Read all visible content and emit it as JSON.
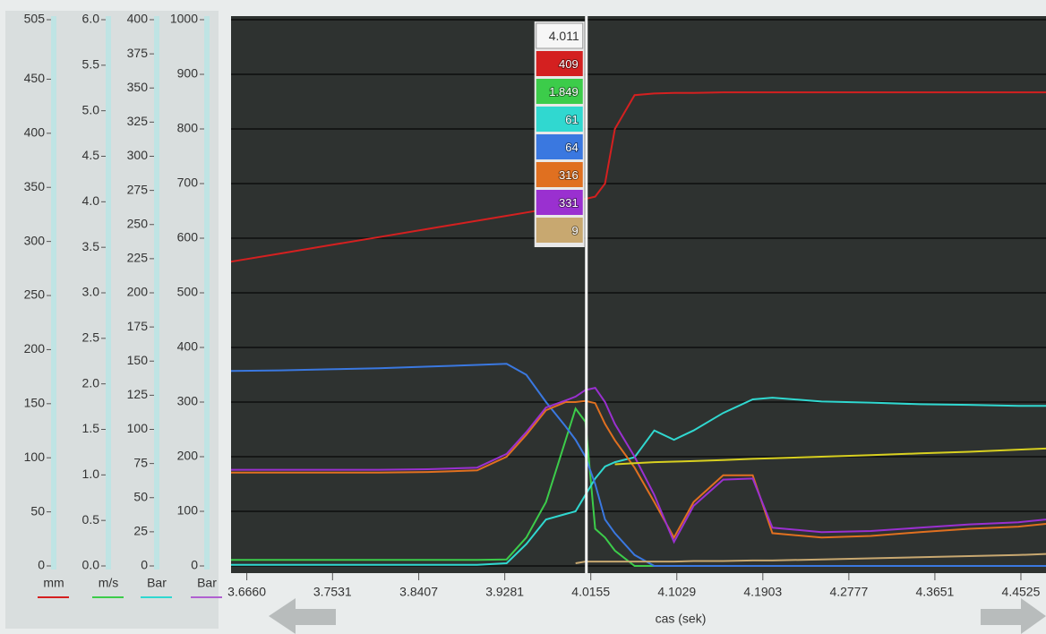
{
  "chart_data": {
    "type": "line",
    "x_label": "cas (sek)",
    "xlim": [
      3.65,
      4.478
    ],
    "xticks": [
      {
        "value": 3.666,
        "label": "3.6660"
      },
      3.7531,
      3.8407,
      3.9281,
      4.0155,
      4.1029,
      4.1903,
      4.2777,
      4.3651,
      4.4525
    ],
    "grid": true,
    "axes": [
      {
        "unit": "mm",
        "color": "#d42020",
        "ylim": [
          0,
          505
        ],
        "yticks": [
          0,
          50,
          100,
          150,
          200,
          250,
          300,
          350,
          400,
          450,
          505
        ]
      },
      {
        "unit": "m/s",
        "color": "#3ccc4a",
        "ylim": [
          0,
          6
        ],
        "yticks": [
          {
            "value": 0,
            "label": "0.0"
          },
          0.5,
          {
            "value": 1,
            "label": "1.0"
          },
          1.5,
          {
            "value": 2,
            "label": "2.0"
          },
          2.5,
          {
            "value": 3,
            "label": "3.0"
          },
          3.5,
          {
            "value": 4,
            "label": "4.0"
          },
          4.5,
          {
            "value": 5,
            "label": "5.0"
          },
          5.5,
          {
            "value": 6,
            "label": "6.0"
          }
        ]
      },
      {
        "unit": "Bar",
        "color": "#30d8d0",
        "ylim": [
          0,
          400
        ],
        "yticks": [
          0,
          25,
          50,
          75,
          100,
          125,
          150,
          175,
          200,
          225,
          250,
          275,
          300,
          325,
          350,
          375,
          400
        ]
      },
      {
        "unit": "Bar",
        "color": "#b060d0",
        "ylim": [
          0,
          1000
        ],
        "yticks": [
          0,
          100,
          200,
          300,
          400,
          500,
          600,
          700,
          800,
          900,
          1000
        ]
      }
    ],
    "cursor": {
      "value": 4.011,
      "label": "4.011"
    },
    "x": [
      3.65,
      3.7,
      3.75,
      3.8,
      3.85,
      3.9,
      3.93,
      3.95,
      3.97,
      3.99,
      4.0,
      4.01,
      4.02,
      4.03,
      4.04,
      4.06,
      4.08,
      4.1,
      4.12,
      4.15,
      4.18,
      4.2,
      4.25,
      4.3,
      4.35,
      4.4,
      4.45,
      4.478
    ],
    "series": [
      {
        "color": "#d42020",
        "axis": 3,
        "readout": "409",
        "values": [
          557,
          572,
          587,
          602,
          617,
          632,
          641,
          647,
          653,
          662,
          668,
          672,
          676,
          700,
          800,
          862,
          865,
          866,
          866,
          867,
          867,
          867,
          867,
          867,
          867,
          867,
          867,
          867
        ]
      },
      {
        "color": "#3ccc4a",
        "axis": 3,
        "readout": "1.849",
        "values": [
          11,
          11,
          11,
          11,
          11,
          11,
          12,
          52,
          117,
          231,
          288,
          264,
          68,
          52,
          28,
          0,
          0,
          0,
          0,
          0,
          0,
          0,
          0,
          0,
          0,
          0,
          0,
          0
        ]
      },
      {
        "color": "#30d8d0",
        "axis": 3,
        "readout": "61",
        "values": [
          2,
          2,
          2,
          2,
          2,
          2,
          5,
          40,
          85,
          95,
          100,
          130,
          160,
          182,
          190,
          199,
          248,
          231,
          248,
          280,
          305,
          308,
          301,
          299,
          296,
          295,
          293,
          293
        ]
      },
      {
        "color": "#3a78e0",
        "axis": 3,
        "readout": "64",
        "values": [
          357,
          358,
          360,
          362,
          365,
          368,
          370,
          350,
          300,
          255,
          231,
          200,
          150,
          85,
          60,
          20,
          0,
          0,
          0,
          0,
          0,
          0,
          0,
          0,
          0,
          0,
          0,
          0
        ]
      },
      {
        "color": "#e07020",
        "axis": 3,
        "readout": "316",
        "values": [
          171,
          171,
          171,
          171,
          172,
          175,
          200,
          240,
          285,
          300,
          300,
          302,
          298,
          260,
          230,
          180,
          117,
          52,
          117,
          166,
          166,
          60,
          52,
          55,
          62,
          68,
          72,
          77
        ]
      },
      {
        "color": "#9a30d0",
        "axis": 3,
        "readout": "331",
        "values": [
          176,
          176,
          176,
          176,
          177,
          180,
          205,
          245,
          290,
          303,
          310,
          322,
          326,
          300,
          260,
          200,
          130,
          44,
          110,
          158,
          160,
          70,
          62,
          64,
          70,
          76,
          80,
          85
        ]
      },
      {
        "color": "#c8a870",
        "axis": 3,
        "readout": "9",
        "values": [
          null,
          null,
          null,
          null,
          null,
          null,
          null,
          null,
          null,
          null,
          5,
          8,
          8,
          8,
          8,
          8,
          8,
          8,
          9,
          9,
          10,
          10,
          12,
          14,
          16,
          18,
          20,
          22
        ]
      },
      {
        "color": "#d8d020",
        "axis": 3,
        "values": [
          null,
          null,
          null,
          null,
          null,
          null,
          null,
          null,
          null,
          null,
          null,
          null,
          null,
          null,
          186,
          188,
          190,
          191,
          192,
          194,
          196,
          197,
          200,
          203,
          206,
          209,
          213,
          215
        ]
      }
    ]
  }
}
